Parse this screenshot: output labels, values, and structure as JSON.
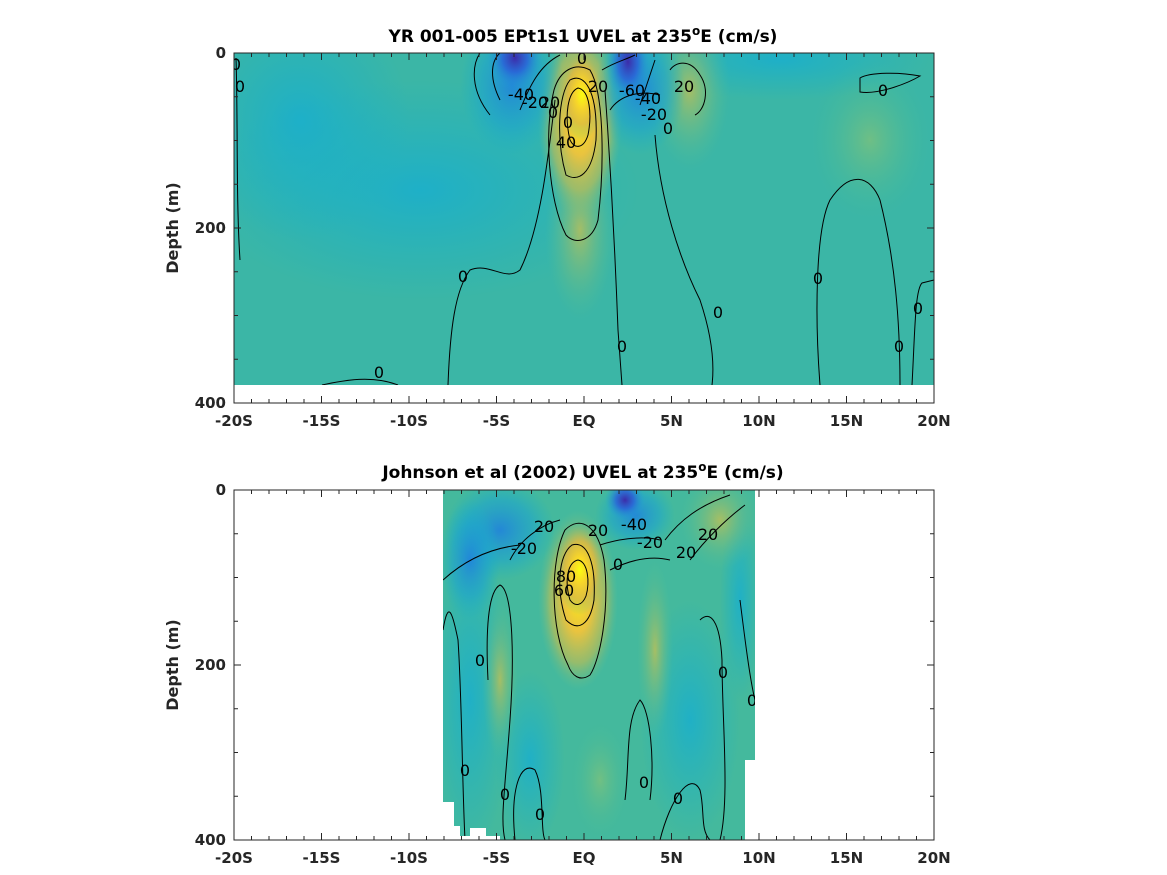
{
  "chart_data": [
    {
      "type": "heatmap",
      "title_main": "YR 001-005 EPt1s1 UVEL at 235",
      "title_sup": "o",
      "title_tail": "E (cm/s)",
      "ylabel": "Depth (m)",
      "x_ticklabels": [
        "-20S",
        "-15S",
        "-10S",
        "-5S",
        "EQ",
        "5N",
        "10N",
        "15N",
        "20N"
      ],
      "x_range": [
        -20,
        20
      ],
      "y_ticklabels": [
        "0",
        "200",
        "400"
      ],
      "y_range": [
        0,
        400
      ],
      "colormap": [
        "#3d26a8",
        "#1e8fe6",
        "#17b0c9",
        "#44bb99",
        "#c9bc55",
        "#fbd535",
        "#f9fb0e"
      ],
      "features": [
        {
          "name": "westward jet south",
          "lat": -4,
          "depth": 20,
          "value": -50
        },
        {
          "name": "Equatorial Undercurrent",
          "lat": 0,
          "depth": 80,
          "value": 90
        },
        {
          "name": "westward jet north",
          "lat": 2.5,
          "depth": 20,
          "value": -60
        },
        {
          "name": "eastward flow",
          "lat": 6,
          "depth": 40,
          "value": 20
        }
      ],
      "contour_labels": [
        "0",
        "0",
        "0",
        "-40",
        "-20",
        "20",
        "0",
        "0",
        "40",
        "20",
        "-60",
        "-40",
        "-20",
        "0",
        "20",
        "0",
        "0",
        "0",
        "0",
        "0",
        "0",
        "0",
        "0"
      ]
    },
    {
      "type": "heatmap",
      "title_main": "Johnson et al (2002) UVEL at 235",
      "title_sup": "o",
      "title_tail": "E (cm/s)",
      "ylabel": "Depth (m)",
      "x_ticklabels": [
        "-20S",
        "-15S",
        "-10S",
        "-5S",
        "EQ",
        "5N",
        "10N",
        "15N",
        "20N"
      ],
      "x_range": [
        -20,
        20
      ],
      "y_ticklabels": [
        "0",
        "200",
        "400"
      ],
      "y_range": [
        0,
        400
      ],
      "data_lat_range": [
        -8,
        10
      ],
      "colormap": [
        "#3d26a8",
        "#1e8fe6",
        "#17b0c9",
        "#44bb99",
        "#c9bc55",
        "#fbd535",
        "#f9fb0e"
      ],
      "features": [
        {
          "name": "westward flow south",
          "lat": -4,
          "depth": 40,
          "value": -30
        },
        {
          "name": "Equatorial Undercurrent",
          "lat": 0,
          "depth": 90,
          "value": 100
        },
        {
          "name": "westward jet north",
          "lat": 2.5,
          "depth": 20,
          "value": -50
        },
        {
          "name": "eastward flow",
          "lat": 7,
          "depth": 40,
          "value": 20
        }
      ],
      "contour_labels": [
        "-20",
        "20",
        "20",
        "-40",
        "-20",
        "20",
        "20",
        "0",
        "80",
        "60",
        "0",
        "0",
        "0",
        "0",
        "0",
        "0",
        "0",
        "0"
      ]
    }
  ]
}
